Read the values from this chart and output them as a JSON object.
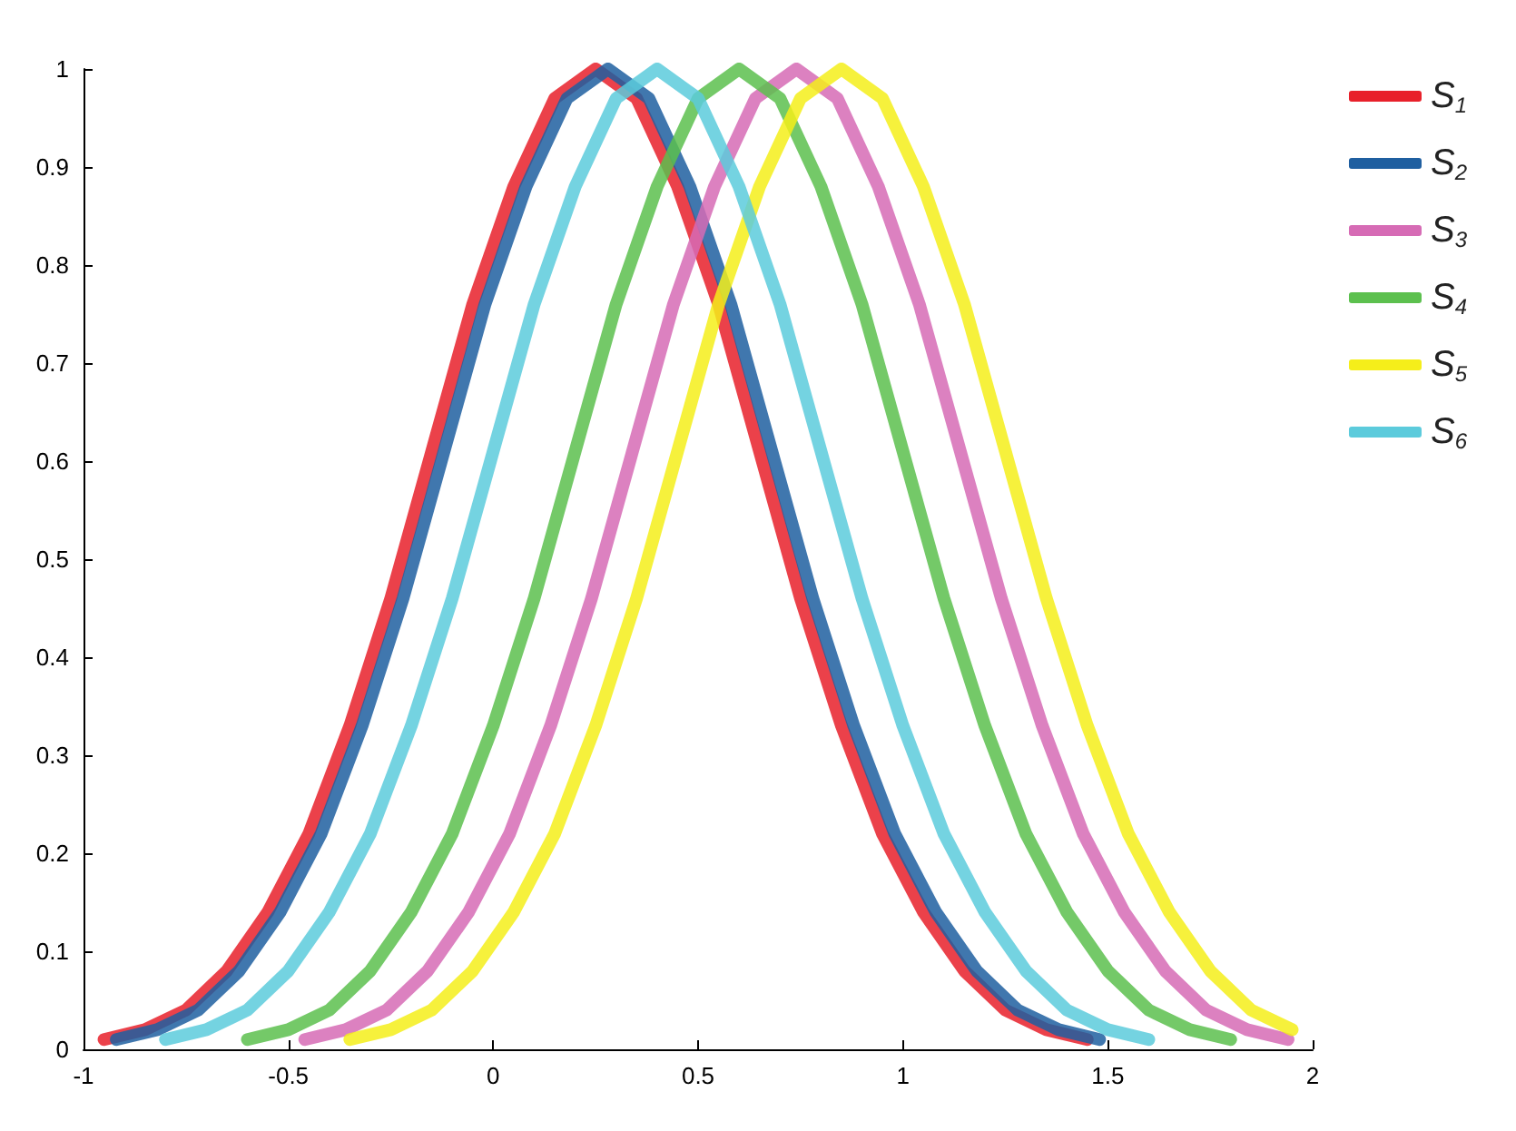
{
  "chart_data": {
    "type": "line",
    "xlim": [
      -1,
      2
    ],
    "xticks": [
      -1,
      -0.5,
      0,
      0.5,
      1,
      1.5,
      2
    ],
    "ylim": [
      0,
      1
    ],
    "yticks": [
      0,
      0.1,
      0.2,
      0.3,
      0.4,
      0.5,
      0.6,
      0.7,
      0.8,
      0.9,
      1
    ],
    "grid": false,
    "legend": "right",
    "marker": "none",
    "line_style": "solid",
    "series": [
      {
        "name": "S$_{1}$",
        "color": "#e8202a",
        "x": [
          -0.95,
          -0.85,
          -0.75,
          -0.65,
          -0.55,
          -0.45,
          -0.35,
          -0.25,
          -0.15,
          -0.05,
          0.05,
          0.15,
          0.25,
          0.35,
          0.45,
          0.55,
          0.65,
          0.75,
          0.85,
          0.95,
          1.05,
          1.15,
          1.25,
          1.35,
          1.45
        ],
        "values": [
          0.01,
          0.02,
          0.04,
          0.08,
          0.14,
          0.22,
          0.33,
          0.46,
          0.61,
          0.76,
          0.88,
          0.97,
          1,
          0.97,
          0.88,
          0.76,
          0.61,
          0.46,
          0.33,
          0.22,
          0.14,
          0.08,
          0.04,
          0.02,
          0.01
        ]
      },
      {
        "name": "S$_{2}$",
        "color": "#1f5fa0",
        "x": [
          -0.92,
          -0.82,
          -0.72,
          -0.62,
          -0.52,
          -0.42,
          -0.32,
          -0.22,
          -0.12,
          -0.02,
          0.08,
          0.18,
          0.28,
          0.38,
          0.48,
          0.58,
          0.68,
          0.78,
          0.88,
          0.98,
          1.08,
          1.18,
          1.28,
          1.38,
          1.48
        ],
        "values": [
          0.01,
          0.02,
          0.04,
          0.08,
          0.14,
          0.22,
          0.33,
          0.46,
          0.61,
          0.76,
          0.88,
          0.97,
          1,
          0.97,
          0.88,
          0.76,
          0.61,
          0.46,
          0.33,
          0.22,
          0.14,
          0.08,
          0.04,
          0.02,
          0.01
        ]
      },
      {
        "name": "S$_{3}$",
        "color": "#d66bb5",
        "x": [
          -0.46,
          -0.36,
          -0.26,
          -0.16,
          -0.06,
          0.04,
          0.14,
          0.24,
          0.34,
          0.44,
          0.54,
          0.64,
          0.74,
          0.84,
          0.94,
          1.04,
          1.14,
          1.24,
          1.34,
          1.44,
          1.54,
          1.64,
          1.74,
          1.84,
          1.94
        ],
        "values": [
          0.01,
          0.02,
          0.04,
          0.08,
          0.14,
          0.22,
          0.33,
          0.46,
          0.61,
          0.76,
          0.88,
          0.97,
          1,
          0.97,
          0.88,
          0.76,
          0.61,
          0.46,
          0.33,
          0.22,
          0.14,
          0.08,
          0.04,
          0.02,
          0.01
        ]
      },
      {
        "name": "S$_{4}$",
        "color": "#5cc04e",
        "x": [
          -0.6,
          -0.5,
          -0.4,
          -0.3,
          -0.2,
          -0.1,
          0,
          0.1,
          0.2,
          0.3,
          0.4,
          0.5,
          0.6,
          0.7,
          0.8,
          0.9,
          1,
          1.1,
          1.2,
          1.3,
          1.4,
          1.5,
          1.6,
          1.7,
          1.8
        ],
        "values": [
          0.01,
          0.02,
          0.04,
          0.08,
          0.14,
          0.22,
          0.33,
          0.46,
          0.61,
          0.76,
          0.88,
          0.97,
          1,
          0.97,
          0.88,
          0.76,
          0.61,
          0.46,
          0.33,
          0.22,
          0.14,
          0.08,
          0.04,
          0.02,
          0.01
        ]
      },
      {
        "name": "S$_{5}$",
        "color": "#f5ee1a",
        "x": [
          -0.35,
          -0.25,
          -0.15,
          -0.05,
          0.05,
          0.15,
          0.25,
          0.35,
          0.45,
          0.55,
          0.65,
          0.75,
          0.85,
          0.95,
          1.05,
          1.15,
          1.25,
          1.35,
          1.45,
          1.55,
          1.65,
          1.75,
          1.85,
          1.95
        ],
        "values": [
          0.01,
          0.02,
          0.04,
          0.08,
          0.14,
          0.22,
          0.33,
          0.46,
          0.61,
          0.76,
          0.88,
          0.97,
          1,
          0.97,
          0.88,
          0.76,
          0.61,
          0.46,
          0.33,
          0.22,
          0.14,
          0.08,
          0.04,
          0.02
        ]
      },
      {
        "name": "S$_{6}$",
        "color": "#5ccbdc",
        "x": [
          -0.8,
          -0.7,
          -0.6,
          -0.5,
          -0.4,
          -0.3,
          -0.2,
          -0.1,
          0,
          0.1,
          0.2,
          0.3,
          0.4,
          0.5,
          0.6,
          0.7,
          0.8,
          0.9,
          1,
          1.1,
          1.2,
          1.3,
          1.4,
          1.5,
          1.6
        ],
        "values": [
          0.01,
          0.02,
          0.04,
          0.08,
          0.14,
          0.22,
          0.33,
          0.46,
          0.61,
          0.76,
          0.88,
          0.97,
          1,
          0.97,
          0.88,
          0.76,
          0.61,
          0.46,
          0.33,
          0.22,
          0.14,
          0.08,
          0.04,
          0.02,
          0.01
        ]
      }
    ]
  }
}
